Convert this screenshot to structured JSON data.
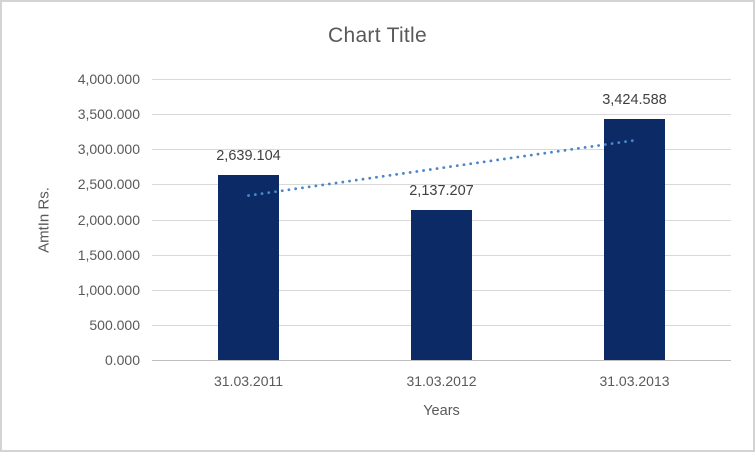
{
  "chart_data": {
    "type": "bar",
    "title": "Chart Title",
    "xlabel": "Years",
    "ylabel": "AmtIn Rs.",
    "categories": [
      "31.03.2011",
      "31.03.2012",
      "31.03.2013"
    ],
    "values": [
      2639.104,
      2137.207,
      3424.588
    ],
    "data_labels": [
      "2,639.104",
      "2,137.207",
      "3,424.588"
    ],
    "y_ticks": [
      "4,000.000",
      "3,500.000",
      "3,000.000",
      "2,500.000",
      "2,000.000",
      "1,500.000",
      "1,000.000",
      "500.000",
      "0.000"
    ],
    "ylim": [
      0,
      4000
    ],
    "grid": true,
    "legend": "none",
    "trendline": {
      "type": "linear",
      "style": "dotted"
    },
    "colors": {
      "bar": "#0b2a66",
      "trendline": "#4a86c8",
      "gridline": "#d9d9d9",
      "axis_line": "#bfbfbf",
      "tick_text": "#595959",
      "data_label_text": "#404040",
      "title_text": "#595959",
      "border": "#d3d3d3",
      "background": "#ffffff"
    }
  }
}
